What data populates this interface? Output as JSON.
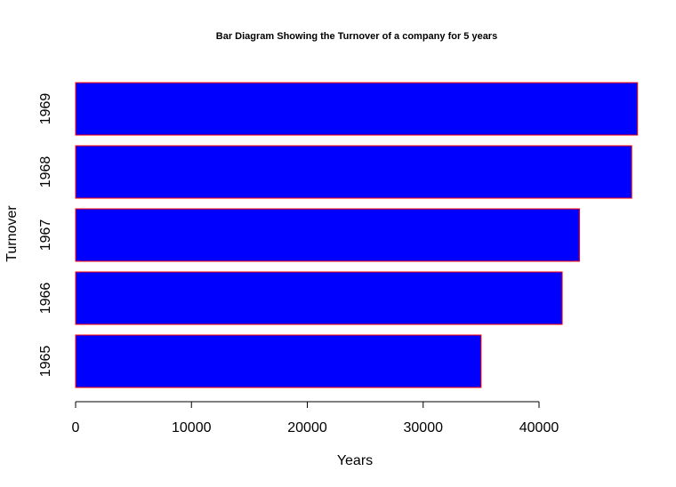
{
  "chart_data": {
    "type": "bar",
    "orientation": "horizontal",
    "title": "Bar Diagram Showing the Turnover of a company for 5 years",
    "xlabel": "Years",
    "ylabel": "Turnover",
    "categories": [
      "1965",
      "1966",
      "1967",
      "1968",
      "1969"
    ],
    "values": [
      35000,
      42000,
      43500,
      48000,
      48500
    ],
    "x_ticks": [
      "0",
      "10000",
      "20000",
      "30000",
      "40000"
    ],
    "x_tick_values": [
      0,
      10000,
      20000,
      30000,
      40000
    ],
    "xlim": [
      0,
      48500
    ],
    "grid": false,
    "bar_fill": "#0000ff",
    "bar_border": "#ff0000"
  }
}
